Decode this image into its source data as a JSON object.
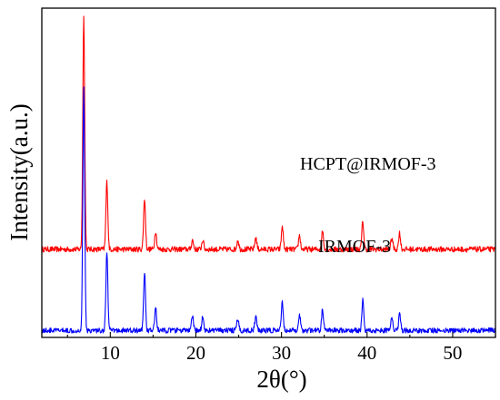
{
  "chart_data": {
    "type": "line",
    "title": "",
    "xlabel": "2θ(°)",
    "ylabel": "Intensity(a.u.)",
    "xlim": [
      2,
      55
    ],
    "x_ticks": [
      10,
      20,
      30,
      40,
      50
    ],
    "x_tick_labels": [
      "10",
      "20",
      "30",
      "40",
      "50"
    ],
    "y_ticks_shown": false,
    "grid": false,
    "legend": "none",
    "series": [
      {
        "name": "HCPT@IRMOF-3",
        "color": "#ff0000",
        "baseline": 0.06,
        "offset": 0.32,
        "noise": 0.012,
        "peaks": [
          {
            "x": 6.9,
            "y": 1.0
          },
          {
            "x": 9.6,
            "y": 0.29
          },
          {
            "x": 14.0,
            "y": 0.22
          },
          {
            "x": 15.3,
            "y": 0.08
          },
          {
            "x": 19.6,
            "y": 0.04
          },
          {
            "x": 20.8,
            "y": 0.04
          },
          {
            "x": 24.9,
            "y": 0.04
          },
          {
            "x": 27.0,
            "y": 0.05
          },
          {
            "x": 30.1,
            "y": 0.1
          },
          {
            "x": 32.1,
            "y": 0.06
          },
          {
            "x": 34.8,
            "y": 0.08
          },
          {
            "x": 39.5,
            "y": 0.12
          },
          {
            "x": 42.9,
            "y": 0.05
          },
          {
            "x": 43.8,
            "y": 0.07
          }
        ]
      },
      {
        "name": "IRMOF-3",
        "color": "#0000ff",
        "baseline": 0.03,
        "offset": 0.0,
        "noise": 0.011,
        "peaks": [
          {
            "x": 6.9,
            "y": 1.04
          },
          {
            "x": 9.6,
            "y": 0.34
          },
          {
            "x": 14.0,
            "y": 0.25
          },
          {
            "x": 15.3,
            "y": 0.1
          },
          {
            "x": 19.6,
            "y": 0.06
          },
          {
            "x": 20.8,
            "y": 0.06
          },
          {
            "x": 24.9,
            "y": 0.05
          },
          {
            "x": 27.0,
            "y": 0.06
          },
          {
            "x": 30.1,
            "y": 0.12
          },
          {
            "x": 32.1,
            "y": 0.07
          },
          {
            "x": 34.8,
            "y": 0.09
          },
          {
            "x": 39.5,
            "y": 0.13
          },
          {
            "x": 42.9,
            "y": 0.06
          },
          {
            "x": 43.8,
            "y": 0.08
          }
        ]
      }
    ]
  }
}
